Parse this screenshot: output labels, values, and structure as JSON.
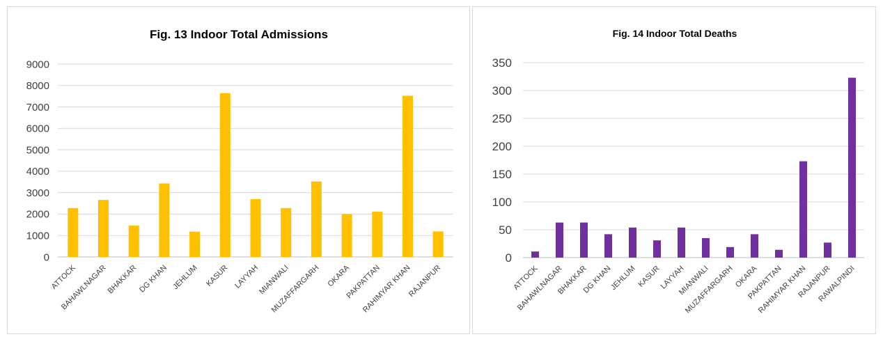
{
  "chart_data": [
    {
      "type": "bar",
      "title": "Fig. 13 Indoor Total Admissions",
      "xlabel": "",
      "ylabel": "",
      "ylim": [
        0,
        9000
      ],
      "ticks": [
        0,
        1000,
        2000,
        3000,
        4000,
        5000,
        6000,
        7000,
        8000,
        9000
      ],
      "grid": true,
      "legend": "none",
      "color": "#ffc000",
      "categories": [
        "ATTOCK",
        "BAHAWLNAGAR",
        "BHAKKAR",
        "DG KHAN",
        "JEHLUM",
        "KASUR",
        "LAYYAH",
        "MIANWALI",
        "MUZAFFARGARH",
        "OKARA",
        "PAKPATTAN",
        "RAHIMYAR KHAN",
        "RAJANPUR"
      ],
      "values": [
        2280,
        2660,
        1460,
        3430,
        1180,
        7640,
        2700,
        2280,
        3520,
        2000,
        2110,
        7520,
        1190
      ]
    },
    {
      "type": "bar",
      "title": "Fig. 14 Indoor Total Deaths",
      "xlabel": "",
      "ylabel": "",
      "ylim": [
        0,
        350
      ],
      "ticks": [
        0,
        50,
        100,
        150,
        200,
        250,
        300,
        350
      ],
      "grid": true,
      "legend": "none",
      "color": "#7030a0",
      "categories": [
        "ATTOCK",
        "BAHAWLNAGAR",
        "BHAKKAR",
        "DG KHAN",
        "JEHLUM",
        "KASUR",
        "LAYYAH",
        "MIANWALI",
        "MUZAFFARGARH",
        "OKARA",
        "PAKPATTAN",
        "RAHIMYAR KHAN",
        "RAJANPUR",
        "RAWALPINDI"
      ],
      "values": [
        11,
        63,
        63,
        42,
        54,
        31,
        54,
        35,
        19,
        42,
        14,
        173,
        27,
        323
      ]
    }
  ]
}
